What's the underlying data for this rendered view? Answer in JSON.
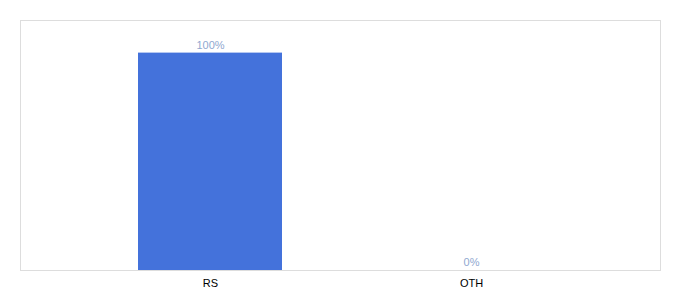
{
  "chart_data": {
    "type": "bar",
    "categories": [
      "RS",
      "OTH"
    ],
    "values": [
      100,
      0
    ],
    "value_labels": [
      "100%",
      "0%"
    ],
    "data_labels": true,
    "color": "#4472db",
    "ylim": [
      0,
      115
    ],
    "tick_labels": "x",
    "grid": false
  }
}
